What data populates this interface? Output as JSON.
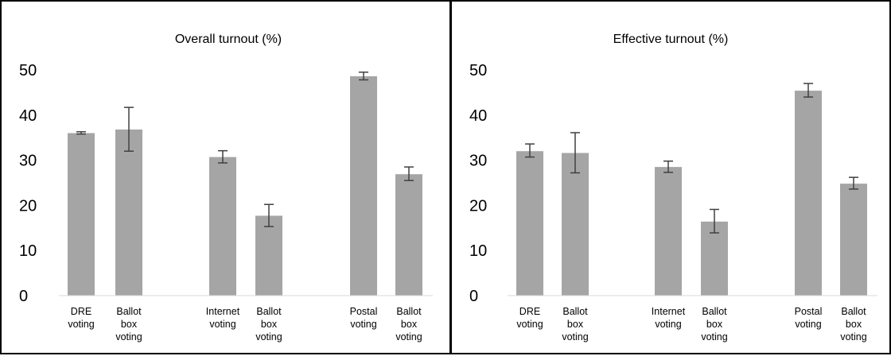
{
  "chart_data": [
    {
      "type": "bar",
      "title": "Overall turnout (%)",
      "xlabel": "",
      "ylabel": "",
      "ylim": [
        0,
        50
      ],
      "yticks": [
        "0",
        "10",
        "20",
        "30",
        "40",
        "50"
      ],
      "grid": false,
      "categories": [
        [
          "DRE",
          "voting"
        ],
        [
          "Ballot",
          "box",
          "voting"
        ],
        [
          "Internet",
          "voting"
        ],
        [
          "Ballot",
          "box",
          "voting"
        ],
        [
          "Postal",
          "voting"
        ],
        [
          "Ballot",
          "box",
          "voting"
        ]
      ],
      "values": [
        36,
        36.8,
        30.7,
        17.7,
        48.6,
        26.9
      ],
      "error_low": [
        35.8,
        32,
        29.4,
        15.3,
        47.8,
        25.5
      ],
      "error_high": [
        36.3,
        41.7,
        32.1,
        20.2,
        49.5,
        28.5
      ],
      "bar_color": "#a5a5a5",
      "error_color": "#404040"
    },
    {
      "type": "bar",
      "title": "Effective turnout (%)",
      "xlabel": "",
      "ylabel": "",
      "ylim": [
        0,
        50
      ],
      "yticks": [
        "0",
        "10",
        "20",
        "30",
        "40",
        "50"
      ],
      "grid": false,
      "categories": [
        [
          "DRE",
          "voting"
        ],
        [
          "Ballot",
          "box",
          "voting"
        ],
        [
          "Internet",
          "voting"
        ],
        [
          "Ballot",
          "box",
          "voting"
        ],
        [
          "Postal",
          "voting"
        ],
        [
          "Ballot",
          "box",
          "voting"
        ]
      ],
      "values": [
        32,
        31.6,
        28.5,
        16.4,
        45.4,
        24.8
      ],
      "error_low": [
        30.7,
        27.2,
        27.3,
        13.9,
        44,
        23.6
      ],
      "error_high": [
        33.6,
        36.1,
        29.8,
        19.1,
        47,
        26.2
      ],
      "bar_color": "#a5a5a5",
      "error_color": "#404040"
    }
  ]
}
